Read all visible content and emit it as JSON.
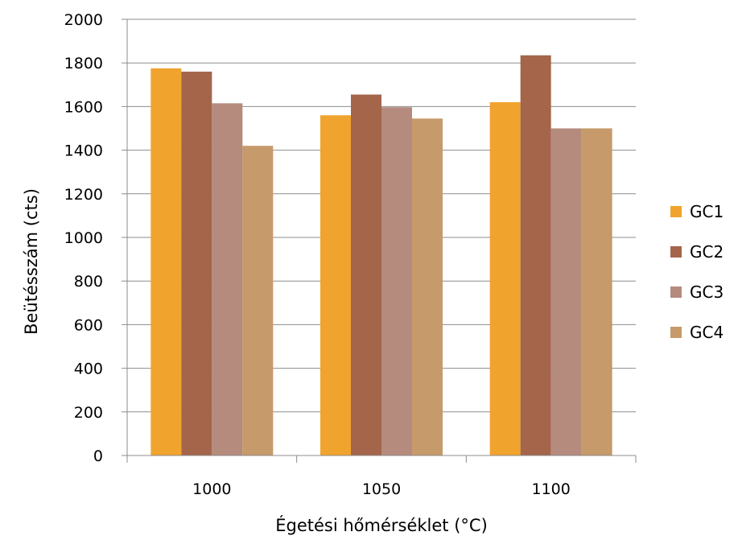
{
  "chart_data": {
    "type": "bar",
    "title": "",
    "xlabel": "Égetési hőmérséklet (°C)",
    "ylabel": "Beütésszám (cts)",
    "categories": [
      "1000",
      "1050",
      "1100"
    ],
    "ylim": [
      0,
      2000
    ],
    "yticks": [
      "0",
      "200",
      "400",
      "600",
      "800",
      "1000",
      "1200",
      "1400",
      "1600",
      "1800",
      "2000"
    ],
    "grid": true,
    "legend_position": "right",
    "series": [
      {
        "name": "GC1",
        "color": "#F0A42E",
        "values": [
          1775,
          1560,
          1620
        ]
      },
      {
        "name": "GC2",
        "color": "#A4654B",
        "values": [
          1760,
          1655,
          1835
        ]
      },
      {
        "name": "GC3",
        "color": "#B58B7E",
        "values": [
          1615,
          1597,
          1500
        ]
      },
      {
        "name": "GC4",
        "color": "#C69A6A",
        "values": [
          1420,
          1545,
          1500
        ]
      }
    ]
  }
}
